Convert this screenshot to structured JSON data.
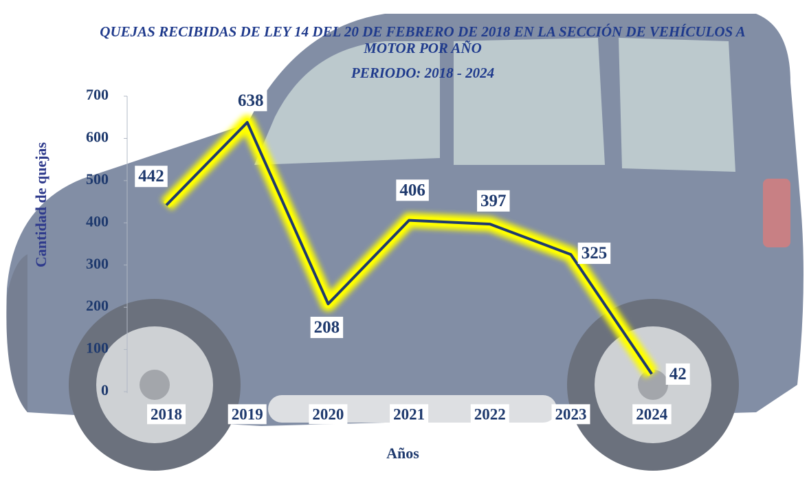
{
  "chart_data": {
    "type": "line",
    "title": "QUEJAS RECIBIDAS DE LEY 14 DEL 20 DE FEBRERO DE 2018 EN LA SECCIÓN DE VEHÍCULOS A MOTOR POR AÑO",
    "subtitle": "PERIODO: 2018 - 2024",
    "x_label": "Años",
    "y_label": "Cantidad de quejas",
    "categories": [
      "2018",
      "2019",
      "2020",
      "2021",
      "2022",
      "2023",
      "2024"
    ],
    "values": [
      442,
      638,
      208,
      406,
      397,
      325,
      42
    ],
    "color": "#1f3a6e",
    "glow_color": "#ffff00",
    "ylim": [
      0,
      700
    ],
    "yticks": [
      0,
      100,
      200,
      300,
      400,
      500,
      600,
      700
    ]
  }
}
